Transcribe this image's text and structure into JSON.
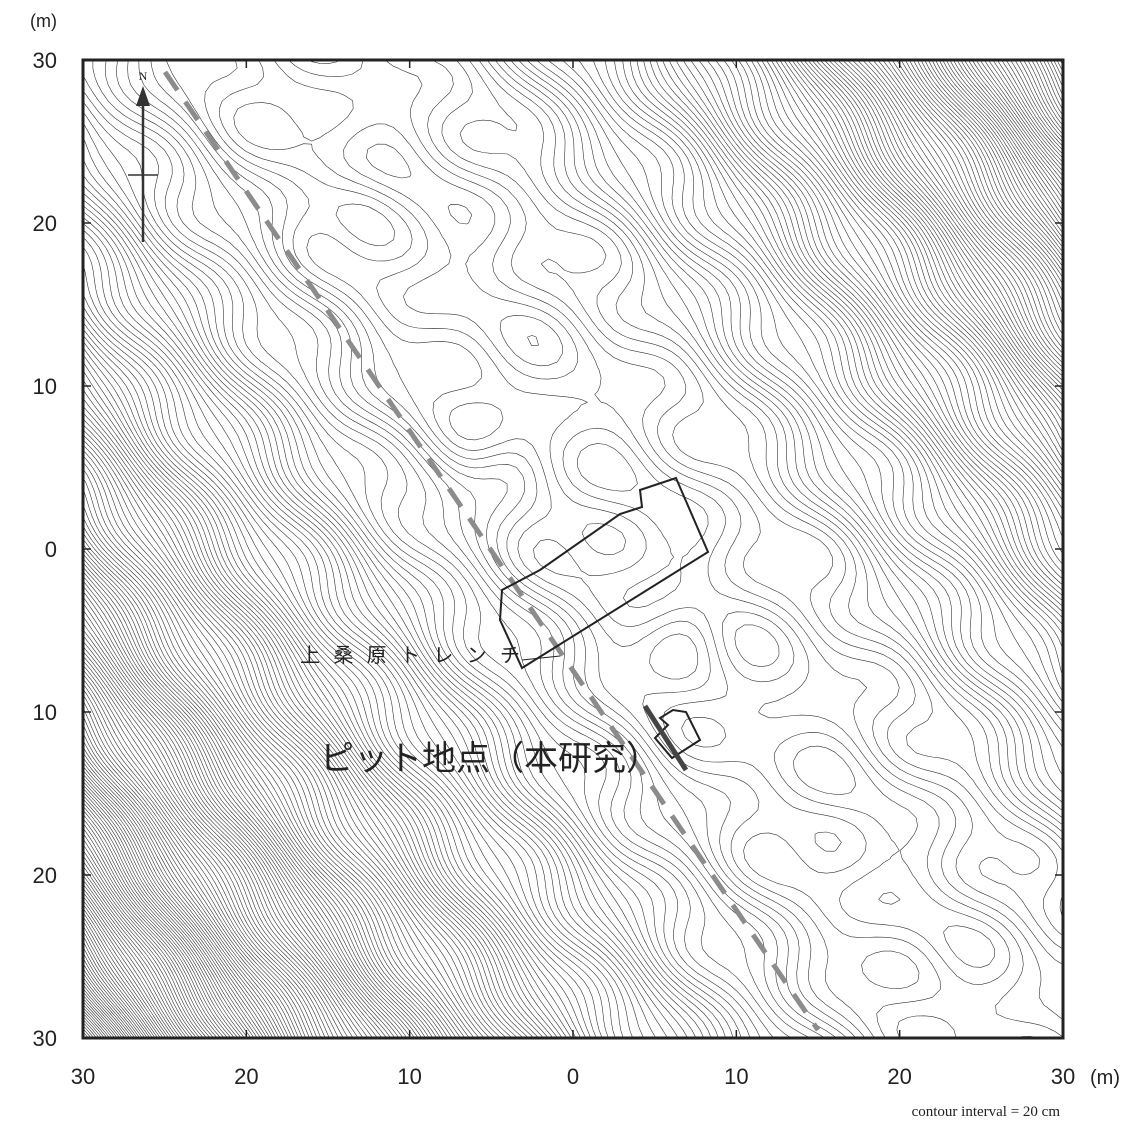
{
  "axes": {
    "y_unit": "(m)",
    "x_unit": "(m)",
    "x_ticks": [
      30,
      20,
      10,
      0,
      10,
      20,
      30
    ],
    "y_ticks": [
      30,
      20,
      10,
      0,
      10,
      20,
      30
    ]
  },
  "north": "N",
  "labels": {
    "trench": "上桑原トレンチ",
    "pit": "ピット地点（本研究）"
  },
  "footnote": "contour interval = 20 cm"
}
